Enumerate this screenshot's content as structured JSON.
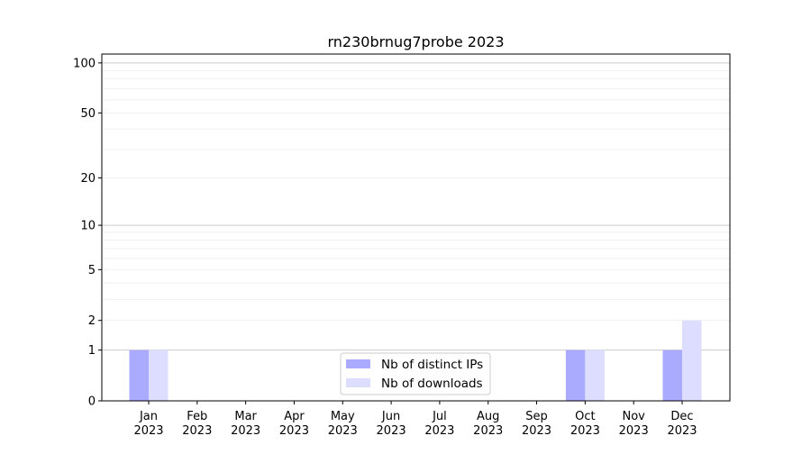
{
  "chart_data": {
    "type": "bar",
    "title": "rn230brnug7probe 2023",
    "xlabel": "",
    "ylabel": "",
    "yscale": "log(1+y)",
    "ylim": [
      0,
      113
    ],
    "yticks": [
      0,
      1,
      2,
      5,
      10,
      20,
      50,
      100
    ],
    "grid": true,
    "legend_position": "lower-center",
    "categories": [
      "Jan\n2023",
      "Feb\n2023",
      "Mar\n2023",
      "Apr\n2023",
      "May\n2023",
      "Jun\n2023",
      "Jul\n2023",
      "Aug\n2023",
      "Sep\n2023",
      "Oct\n2023",
      "Nov\n2023",
      "Dec\n2023"
    ],
    "series": [
      {
        "name": "Nb of distinct IPs",
        "color": "#aaaaff",
        "values": [
          1,
          0,
          0,
          0,
          0,
          0,
          0,
          0,
          0,
          1,
          0,
          1
        ]
      },
      {
        "name": "Nb of downloads",
        "color": "#ddddff",
        "values": [
          1,
          0,
          0,
          0,
          0,
          0,
          0,
          0,
          0,
          1,
          0,
          2
        ]
      }
    ]
  }
}
